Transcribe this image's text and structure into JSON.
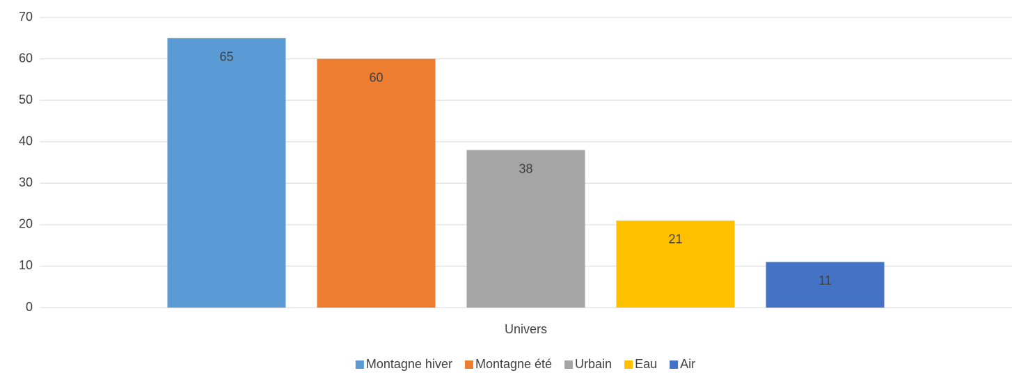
{
  "chart_data": {
    "type": "bar",
    "categories": [
      "Univers"
    ],
    "series": [
      {
        "name": "Montagne hiver",
        "color": "#5B9BD5",
        "values": [
          65
        ]
      },
      {
        "name": "Montagne été",
        "color": "#ED7D31",
        "values": [
          60
        ]
      },
      {
        "name": "Urbain",
        "color": "#A5A5A5",
        "values": [
          38
        ]
      },
      {
        "name": "Eau",
        "color": "#FFC000",
        "values": [
          21
        ]
      },
      {
        "name": "Air",
        "color": "#4472C4",
        "values": [
          11
        ]
      }
    ],
    "ylim": [
      0,
      70
    ],
    "yticks": [
      0,
      10,
      20,
      30,
      40,
      50,
      60,
      70
    ],
    "grid": true,
    "legend": "bottom"
  }
}
